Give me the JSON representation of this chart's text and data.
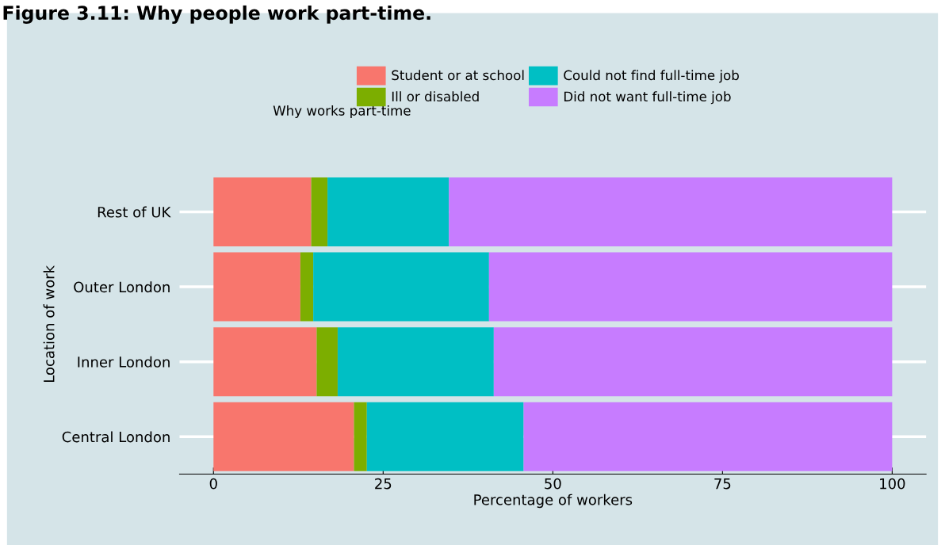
{
  "chart_data": {
    "type": "bar",
    "title": "Figure 3.11: Why people work part-time.",
    "orientation": "horizontal",
    "stacked": true,
    "xlabel": "Percentage of workers",
    "ylabel": "Location of work",
    "legend_title": "Why works part-time",
    "legend": "top",
    "grid": "y",
    "categories": [
      "Rest of UK",
      "Outer London",
      "Inner London",
      "Central London"
    ],
    "xlim": [
      -5,
      105
    ],
    "xticks": [
      0,
      25,
      50,
      75,
      100
    ],
    "series": [
      {
        "name": "Student or at school",
        "color": "#f8766d",
        "values": [
          14.4,
          12.8,
          15.2,
          20.7
        ]
      },
      {
        "name": "Ill or disabled",
        "color": "#7cae00",
        "values": [
          2.4,
          1.9,
          3.1,
          1.9
        ]
      },
      {
        "name": "Could not find full-time job",
        "color": "#00bfc4",
        "values": [
          17.9,
          25.9,
          23.0,
          23.1
        ]
      },
      {
        "name": "Did not want full-time job",
        "color": "#c77cff",
        "values": [
          65.3,
          59.4,
          58.7,
          54.3
        ]
      }
    ]
  }
}
